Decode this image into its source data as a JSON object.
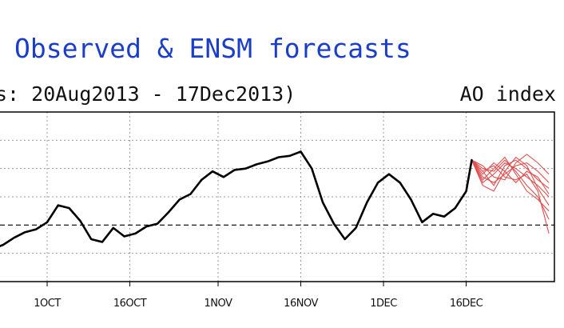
{
  "chart_data": {
    "type": "line",
    "title": "Observed & ENSM forecasts",
    "subtitle": "s: 20Aug2013 - 17Dec2013)",
    "index_label": "AO index",
    "x_tick_labels": [
      "1OCT",
      "16OCT",
      "1NOV",
      "16NOV",
      "1DEC",
      "16DEC"
    ],
    "xlim": [
      "2013-09-21",
      "2014-01-01"
    ],
    "ylim": [
      -2,
      4
    ],
    "zero_line": 0,
    "grid": true,
    "colors": {
      "observed": "#000000",
      "forecast": "#e05050",
      "title": "#1a3ec8"
    },
    "observed": {
      "x": [
        "2013-09-21",
        "2013-09-23",
        "2013-09-25",
        "2013-09-27",
        "2013-09-29",
        "2013-10-01",
        "2013-10-03",
        "2013-10-05",
        "2013-10-07",
        "2013-10-09",
        "2013-10-11",
        "2013-10-13",
        "2013-10-15",
        "2013-10-17",
        "2013-10-19",
        "2013-10-21",
        "2013-10-23",
        "2013-10-25",
        "2013-10-27",
        "2013-10-29",
        "2013-10-31",
        "2013-11-02",
        "2013-11-04",
        "2013-11-06",
        "2013-11-08",
        "2013-11-10",
        "2013-11-12",
        "2013-11-14",
        "2013-11-16",
        "2013-11-18",
        "2013-11-20",
        "2013-11-22",
        "2013-11-24",
        "2013-11-26",
        "2013-11-28",
        "2013-11-30",
        "2013-12-02",
        "2013-12-04",
        "2013-12-06",
        "2013-12-08",
        "2013-12-10",
        "2013-12-12",
        "2013-12-14",
        "2013-12-16",
        "2013-12-17"
      ],
      "values": [
        -0.85,
        -0.7,
        -0.45,
        -0.25,
        -0.15,
        0.1,
        0.7,
        0.6,
        0.15,
        -0.5,
        -0.6,
        -0.1,
        -0.4,
        -0.3,
        -0.05,
        0.05,
        0.45,
        0.9,
        1.1,
        1.6,
        1.9,
        1.7,
        1.95,
        2.0,
        2.15,
        2.25,
        2.4,
        2.45,
        2.6,
        2.0,
        0.8,
        0.05,
        -0.5,
        -0.1,
        0.8,
        1.5,
        1.8,
        1.5,
        0.9,
        0.1,
        0.4,
        0.3,
        0.6,
        1.2,
        2.3
      ]
    },
    "forecast": {
      "x": [
        "2013-12-17",
        "2013-12-19",
        "2013-12-21",
        "2013-12-23",
        "2013-12-25",
        "2013-12-27",
        "2013-12-29",
        "2013-12-31"
      ],
      "members": [
        [
          2.3,
          1.5,
          1.8,
          2.2,
          2.0,
          1.7,
          1.4,
          1.0
        ],
        [
          2.3,
          1.6,
          2.0,
          2.4,
          1.8,
          1.2,
          0.9,
          0.5
        ],
        [
          2.3,
          1.9,
          1.4,
          2.1,
          2.3,
          2.0,
          1.6,
          1.3
        ],
        [
          2.3,
          2.1,
          1.7,
          1.6,
          2.2,
          2.5,
          2.2,
          1.8
        ],
        [
          2.3,
          1.8,
          2.2,
          1.9,
          1.5,
          1.9,
          1.7,
          1.1
        ],
        [
          2.3,
          1.4,
          1.2,
          1.9,
          2.4,
          2.1,
          1.3,
          0.7
        ],
        [
          2.3,
          2.0,
          1.9,
          2.3,
          1.9,
          1.4,
          1.0,
          0.2
        ],
        [
          2.3,
          1.7,
          1.5,
          1.8,
          2.1,
          2.2,
          1.9,
          1.5
        ],
        [
          2.3,
          1.9,
          2.1,
          1.7,
          1.6,
          1.8,
          1.2,
          -0.3
        ]
      ]
    }
  }
}
